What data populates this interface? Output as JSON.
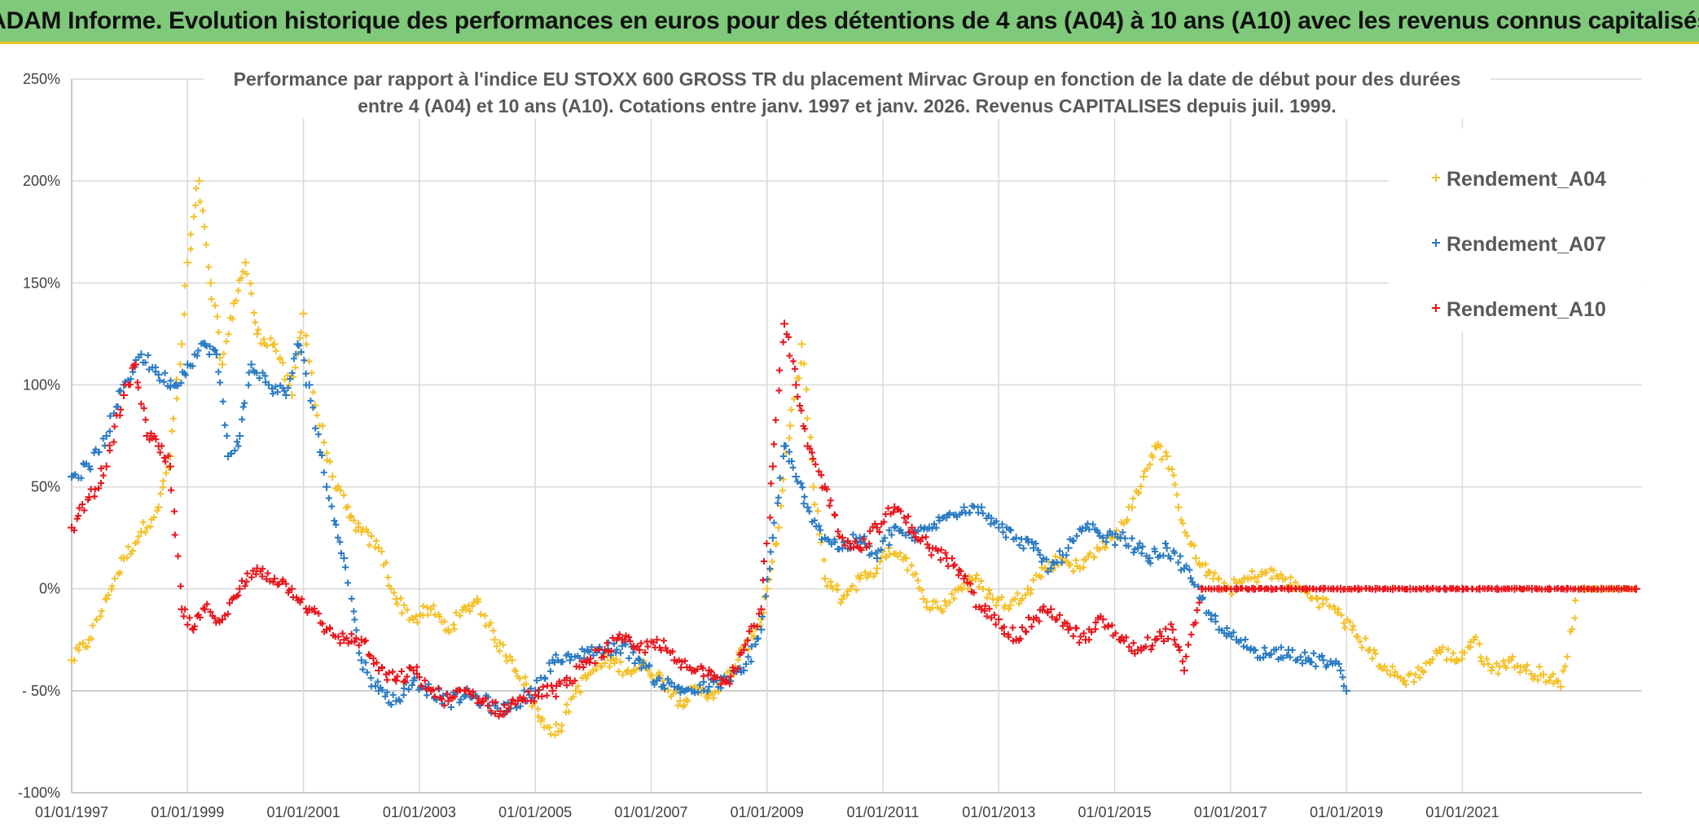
{
  "header": {
    "title": "ADAM Informe. Evolution historique des performances en euros pour des détentions de 4 ans (A04) à 10 ans (A10) avec les revenus connus capitalisés"
  },
  "chart_data": {
    "type": "scatter",
    "title_lines": [
      "Performance par rapport à l'indice EU STOXX 600 GROSS TR  du placement Mirvac Group  en fonction de la date de début pour des durées",
      "entre 4 (A04) et 10 ans (A10). Cotations entre janv. 1997 et janv. 2026. Revenus CAPITALISES depuis juil. 1999."
    ],
    "xlabel": "",
    "ylabel": "",
    "xlim": [
      1997.0,
      2024.1
    ],
    "ylim": [
      -100,
      250
    ],
    "y_ticks": [
      250,
      200,
      150,
      100,
      50,
      0,
      -50,
      -100
    ],
    "y_tick_labels": [
      "250%",
      "200%",
      "150%",
      "100%",
      "50%",
      "0%",
      "- 50%",
      "-100%"
    ],
    "x_ticks": [
      1997,
      1999,
      2001,
      2003,
      2005,
      2007,
      2009,
      2011,
      2013,
      2015,
      2017,
      2019,
      2021
    ],
    "x_tick_labels": [
      "01/01/1997",
      "01/01/1999",
      "01/01/2001",
      "01/01/2003",
      "01/01/2005",
      "01/01/2007",
      "01/01/2009",
      "01/01/2011",
      "01/01/2013",
      "01/01/2015",
      "01/01/2017",
      "01/01/2019",
      "01/01/2021"
    ],
    "legend_position": "top-right",
    "marker": "+",
    "series": [
      {
        "name": "Rendement_A04",
        "color": "#f5c12a",
        "x": [
          1997.0,
          1997.3,
          1997.6,
          1997.9,
          1998.2,
          1998.5,
          1998.7,
          1998.9,
          1999.0,
          1999.2,
          1999.4,
          1999.6,
          1999.8,
          2000.0,
          2000.2,
          2000.5,
          2000.8,
          2001.0,
          2001.2,
          2001.5,
          2001.8,
          2002.0,
          2002.3,
          2002.6,
          2002.9,
          2003.2,
          2003.5,
          2003.8,
          2004.0,
          2004.3,
          2004.6,
          2004.9,
          2005.1,
          2005.4,
          2005.7,
          2006.0,
          2006.3,
          2006.6,
          2006.9,
          2007.2,
          2007.5,
          2007.8,
          2008.0,
          2008.3,
          2008.6,
          2008.9,
          2009.0,
          2009.2,
          2009.4,
          2009.6,
          2009.8,
          2010.0,
          2010.3,
          2010.6,
          2010.9,
          2011.1,
          2011.4,
          2011.7,
          2012.0,
          2012.3,
          2012.6,
          2012.9,
          2013.2,
          2013.5,
          2013.8,
          2014.1,
          2014.4,
          2014.7,
          2015.0,
          2015.3,
          2015.5,
          2015.7,
          2015.9,
          2016.1,
          2016.4,
          2016.7,
          2017.0,
          2017.3,
          2017.6,
          2017.9,
          2018.2,
          2018.5,
          2018.8,
          2019.1,
          2019.4,
          2019.7,
          2020.0,
          2020.3,
          2020.6,
          2020.9,
          2021.2,
          2021.5,
          2021.8,
          2022.1,
          2022.4,
          2022.7,
          2023.0,
          2023.3,
          2023.6,
          2024.0
        ],
        "values": [
          -35,
          -25,
          -5,
          15,
          28,
          40,
          65,
          120,
          160,
          200,
          150,
          110,
          140,
          160,
          125,
          120,
          95,
          135,
          90,
          55,
          35,
          28,
          20,
          -5,
          -15,
          -10,
          -20,
          -10,
          -5,
          -25,
          -35,
          -50,
          -65,
          -70,
          -50,
          -40,
          -35,
          -40,
          -38,
          -45,
          -55,
          -50,
          -52,
          -45,
          -30,
          -15,
          0,
          30,
          80,
          120,
          50,
          5,
          -5,
          5,
          10,
          20,
          15,
          -5,
          -10,
          0,
          5,
          -5,
          -8,
          0,
          10,
          15,
          10,
          20,
          25,
          40,
          55,
          70,
          65,
          40,
          15,
          5,
          0,
          5,
          8,
          5,
          0,
          -5,
          -10,
          -20,
          -30,
          -40,
          -45,
          -40,
          -30,
          -35,
          -25,
          -40,
          -35,
          -40,
          -42,
          -48,
          0,
          0,
          0,
          0
        ]
      },
      {
        "name": "Rendement_A07",
        "color": "#2a7bc4",
        "x": [
          1997.0,
          1997.3,
          1997.6,
          1997.9,
          1998.2,
          1998.5,
          1998.8,
          1999.0,
          1999.3,
          1999.5,
          1999.7,
          1999.9,
          2000.1,
          2000.4,
          2000.7,
          2000.9,
          2001.1,
          2001.4,
          2001.7,
          2002.0,
          2002.3,
          2002.6,
          2002.9,
          2003.2,
          2003.5,
          2003.8,
          2004.1,
          2004.4,
          2004.7,
          2005.0,
          2005.3,
          2005.6,
          2005.9,
          2006.2,
          2006.5,
          2006.8,
          2007.1,
          2007.4,
          2007.7,
          2008.0,
          2008.3,
          2008.6,
          2008.9,
          2009.1,
          2009.3,
          2009.5,
          2009.7,
          2010.0,
          2010.3,
          2010.6,
          2010.9,
          2011.2,
          2011.5,
          2011.8,
          2012.1,
          2012.4,
          2012.7,
          2013.0,
          2013.3,
          2013.6,
          2013.9,
          2014.2,
          2014.5,
          2014.8,
          2015.1,
          2015.4,
          2015.6,
          2015.9,
          2016.2,
          2016.5,
          2016.8,
          2017.1,
          2017.4,
          2017.7,
          2018.0,
          2018.3,
          2018.6,
          2018.9,
          2019.0
        ],
        "values": [
          55,
          60,
          75,
          100,
          115,
          105,
          100,
          110,
          120,
          115,
          65,
          75,
          110,
          100,
          95,
          120,
          100,
          50,
          15,
          -35,
          -50,
          -55,
          -45,
          -50,
          -55,
          -52,
          -55,
          -60,
          -55,
          -50,
          -35,
          -35,
          -30,
          -30,
          -28,
          -35,
          -45,
          -48,
          -50,
          -48,
          -45,
          -40,
          -20,
          25,
          70,
          55,
          40,
          25,
          20,
          25,
          15,
          30,
          25,
          30,
          35,
          40,
          40,
          30,
          25,
          20,
          10,
          20,
          30,
          25,
          25,
          20,
          15,
          20,
          10,
          -5,
          -20,
          -25,
          -30,
          -32,
          -30,
          -35,
          -35,
          -40,
          -50
        ]
      },
      {
        "name": "Rendement_A10",
        "color": "#e8161c",
        "x": [
          1997.0,
          1997.3,
          1997.6,
          1997.9,
          1998.1,
          1998.3,
          1998.5,
          1998.7,
          1998.9,
          1999.1,
          1999.3,
          1999.6,
          1999.9,
          2000.2,
          2000.5,
          2000.8,
          2001.1,
          2001.4,
          2001.7,
          2002.0,
          2002.3,
          2002.6,
          2002.9,
          2003.2,
          2003.5,
          2003.8,
          2004.1,
          2004.4,
          2004.7,
          2005.0,
          2005.3,
          2005.6,
          2005.9,
          2006.2,
          2006.5,
          2006.8,
          2007.1,
          2007.4,
          2007.7,
          2008.0,
          2008.3,
          2008.6,
          2008.9,
          2009.1,
          2009.3,
          2009.5,
          2009.7,
          2010.0,
          2010.3,
          2010.6,
          2010.9,
          2011.2,
          2011.5,
          2011.8,
          2012.1,
          2012.4,
          2012.7,
          2013.0,
          2013.3,
          2013.6,
          2013.9,
          2014.2,
          2014.5,
          2014.8,
          2015.1,
          2015.4,
          2015.7,
          2016.0,
          2016.2,
          2016.5,
          2016.8,
          2017.1,
          2017.4,
          2017.7,
          2018.0,
          2018.3,
          2018.6,
          2018.9,
          2019.2,
          2019.5,
          2019.8,
          2020.1,
          2020.4,
          2020.7,
          2021.0,
          2021.3,
          2021.6,
          2021.9,
          2022.2,
          2022.5,
          2022.8,
          2023.1,
          2023.4,
          2023.7,
          2024.0
        ],
        "values": [
          30,
          45,
          60,
          95,
          110,
          75,
          70,
          60,
          -10,
          -20,
          -10,
          -15,
          0,
          10,
          5,
          0,
          -10,
          -20,
          -25,
          -25,
          -40,
          -45,
          -40,
          -50,
          -55,
          -50,
          -55,
          -60,
          -55,
          -52,
          -50,
          -45,
          -35,
          -30,
          -25,
          -30,
          -25,
          -35,
          -40,
          -40,
          -45,
          -30,
          -10,
          60,
          130,
          100,
          70,
          50,
          25,
          20,
          30,
          40,
          30,
          20,
          15,
          5,
          -10,
          -15,
          -25,
          -15,
          -10,
          -20,
          -25,
          -15,
          -25,
          -30,
          -25,
          -20,
          -40,
          0,
          0,
          0,
          0,
          0,
          0,
          0,
          0,
          0,
          0,
          0,
          0,
          0,
          0,
          0,
          0,
          0,
          0,
          0,
          0,
          0,
          0,
          0,
          0,
          0,
          0
        ]
      }
    ]
  }
}
